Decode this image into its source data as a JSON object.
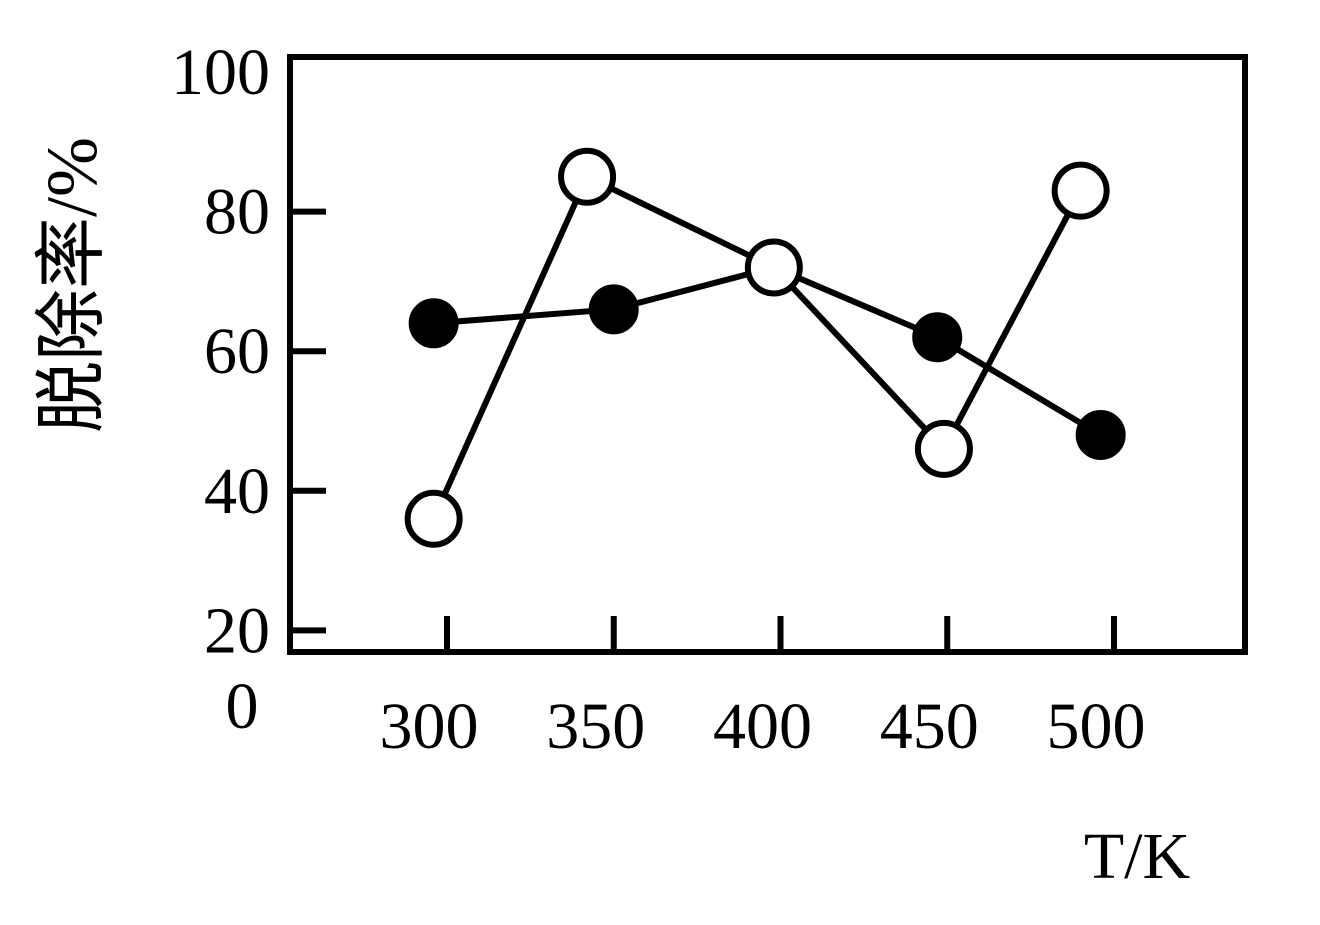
{
  "chart_data": {
    "type": "line",
    "title": "",
    "xlabel": "T/K",
    "ylabel": "脱除率/%",
    "origin_label": "0",
    "x_ticks": [
      300,
      350,
      400,
      450,
      500
    ],
    "y_ticks": [
      20,
      40,
      60,
      80,
      100
    ],
    "xlim": [
      255,
      540
    ],
    "ylim": [
      0,
      100
    ],
    "grid": false,
    "legend": "none",
    "series": [
      {
        "marker": "filled-circle",
        "color": "#000000",
        "points": [
          {
            "x": 296,
            "y": 64
          },
          {
            "x": 350,
            "y": 66
          },
          {
            "x": 398,
            "y": 72
          },
          {
            "x": 447,
            "y": 62
          },
          {
            "x": 496,
            "y": 48
          }
        ]
      },
      {
        "marker": "open-circle",
        "color": "#000000",
        "points": [
          {
            "x": 296,
            "y": 36
          },
          {
            "x": 342,
            "y": 85
          },
          {
            "x": 398,
            "y": 72
          },
          {
            "x": 449,
            "y": 46
          },
          {
            "x": 490,
            "y": 83
          }
        ]
      }
    ]
  }
}
